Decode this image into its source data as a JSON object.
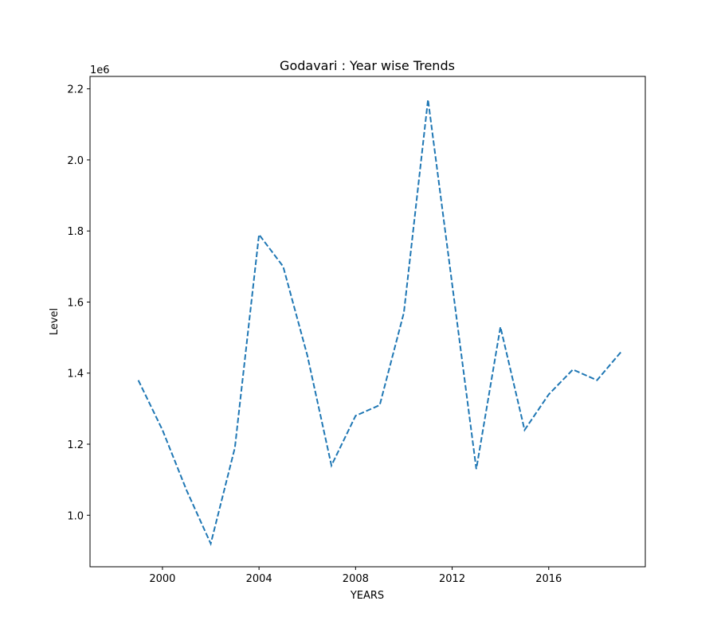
{
  "chart_data": {
    "type": "line",
    "title": "Godavari : Year wise Trends",
    "xlabel": "YEARS",
    "ylabel": "Level",
    "y_offset_label": "1e6",
    "xlim": [
      1997,
      2020
    ],
    "ylim": [
      0.855,
      2.235
    ],
    "y_scale_factor": 1000000,
    "x_ticks": [
      2000,
      2004,
      2008,
      2012,
      2016
    ],
    "x_tick_labels": [
      "2000",
      "2004",
      "2008",
      "2012",
      "2016"
    ],
    "y_ticks": [
      1.0,
      1.2,
      1.4,
      1.6,
      1.8,
      2.0,
      2.2
    ],
    "y_tick_labels": [
      "1.0",
      "1.2",
      "1.4",
      "1.6",
      "1.8",
      "2.0",
      "2.2"
    ],
    "grid": false,
    "series": [
      {
        "color": "#1f77b4",
        "line_style": "dashed",
        "x": [
          1999,
          2000,
          2001,
          2002,
          2003,
          2004,
          2005,
          2006,
          2007,
          2008,
          2009,
          2010,
          2011,
          2012,
          2013,
          2014,
          2015,
          2016,
          2017,
          2018,
          2019
        ],
        "y": [
          1.38,
          1.24,
          1.07,
          0.92,
          1.19,
          1.79,
          1.7,
          1.45,
          1.14,
          1.28,
          1.31,
          1.57,
          2.17,
          1.65,
          1.13,
          1.53,
          1.24,
          1.34,
          1.41,
          1.38,
          1.46
        ]
      }
    ]
  }
}
